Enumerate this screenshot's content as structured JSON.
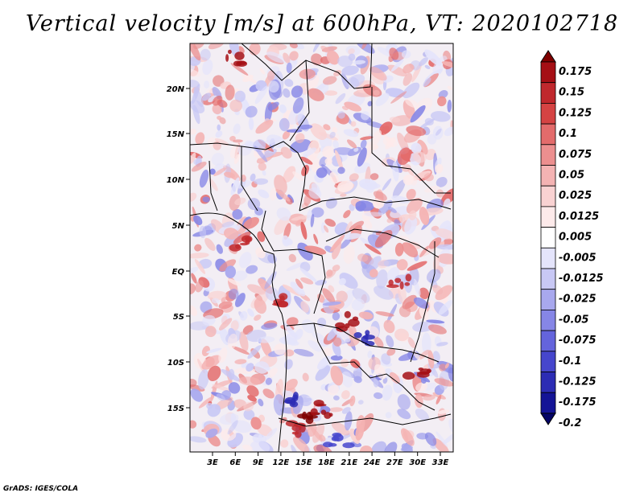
{
  "title": "Vertical velocity [m/s] at 600hPa, VT: 2020102718",
  "credit": "GrADS: IGES/COLA",
  "map": {
    "lat_labels": [
      "20N",
      "15N",
      "10N",
      "5N",
      "EQ",
      "5S",
      "10S",
      "15S"
    ],
    "lon_labels": [
      "3E",
      "6E",
      "9E",
      "12E",
      "15E",
      "18E",
      "21E",
      "24E",
      "27E",
      "30E",
      "33E"
    ]
  },
  "colorbar": {
    "labels": [
      "0.175",
      "0.15",
      "0.125",
      "0.1",
      "0.075",
      "0.05",
      "0.025",
      "0.0125",
      "0.005",
      "-0.005",
      "-0.0125",
      "-0.025",
      "-0.05",
      "-0.075",
      "-0.1",
      "-0.125",
      "-0.175",
      "-0.2"
    ],
    "colors": [
      "#7f0000",
      "#a50f15",
      "#c0282d",
      "#d54343",
      "#e36b6b",
      "#ec8f8f",
      "#f4b3b3",
      "#f9d2d2",
      "#fdeaea",
      "#ffffff",
      "#e4e4fb",
      "#c8c8f5",
      "#a8a8ee",
      "#8686e6",
      "#6464dc",
      "#4646cc",
      "#2c2cb4",
      "#141496",
      "#050566"
    ]
  }
}
